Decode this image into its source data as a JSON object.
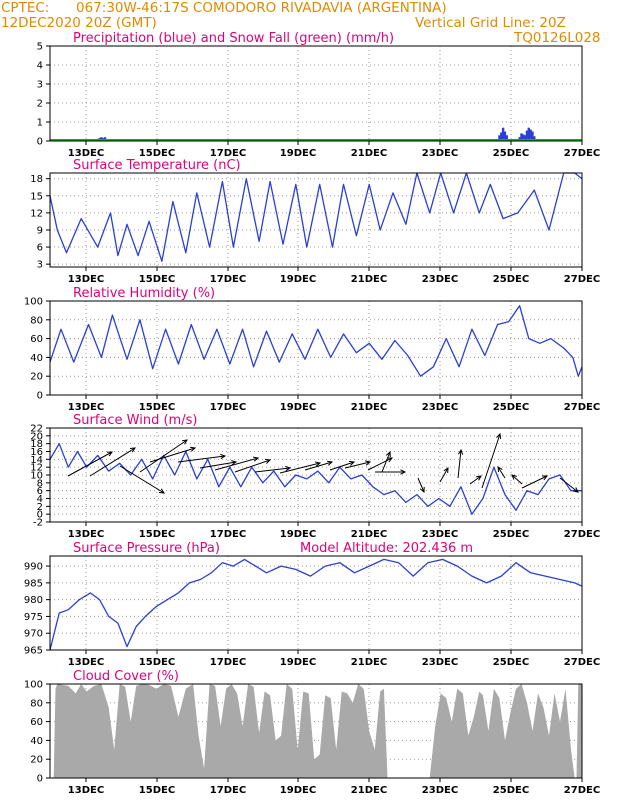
{
  "header": {
    "source": "CPTEC:",
    "location": "067:30W-46:17S   COMODORO RIVADAVIA (ARGENTINA)",
    "datetime": "12DEC2020 20Z (GMT)",
    "gridline": "Vertical Grid Line: 20Z",
    "code": "TQ0126L028"
  },
  "colors": {
    "header": "#e08a00",
    "title": "#e0007a",
    "line": "#2b3fd6",
    "snow": "#00bb00",
    "cloud": "#a9a9a9",
    "arrow": "#000000"
  },
  "chart_data": [
    {
      "type": "bar",
      "title": "Precipitation (blue) and Snow Fall (green) (mm/h)",
      "x_ticks": [
        "13DEC",
        "15DEC",
        "17DEC",
        "19DEC",
        "21DEC",
        "23DEC",
        "25DEC",
        "27DEC"
      ],
      "y_ticks": [
        0,
        1,
        2,
        3,
        4,
        5
      ],
      "ylim": [
        0,
        5
      ],
      "day_range": [
        12.5,
        27
      ],
      "series": [
        {
          "name": "Precipitation",
          "x": [
            13.8,
            13.85,
            13.9,
            13.95,
            14.0,
            14.05,
            24.75,
            24.8,
            24.85,
            24.9,
            24.95,
            25.0,
            25.3,
            25.35,
            25.4,
            25.45,
            25.5,
            25.55,
            25.6,
            25.65,
            25.7,
            25.75
          ],
          "values": [
            0.1,
            0.15,
            0.2,
            0.15,
            0.2,
            0.1,
            0.3,
            0.45,
            0.7,
            0.5,
            0.3,
            0.1,
            0.2,
            0.4,
            0.35,
            0.3,
            0.55,
            0.7,
            0.6,
            0.5,
            0.25,
            0.1
          ]
        },
        {
          "name": "Snow Fall",
          "x": [
            12.5,
            27
          ],
          "values": [
            0,
            0
          ]
        }
      ]
    },
    {
      "type": "line",
      "title": "Surface Temperature (nC)",
      "x_ticks": [
        "13DEC",
        "15DEC",
        "17DEC",
        "19DEC",
        "21DEC",
        "23DEC",
        "25DEC",
        "27DEC"
      ],
      "y_ticks": [
        3,
        6,
        9,
        12,
        15,
        18
      ],
      "ylim": [
        2.5,
        19
      ],
      "day_range": [
        12.5,
        27
      ],
      "series": [
        {
          "name": "Temperature",
          "x": [
            12.5,
            12.7,
            12.95,
            13.35,
            13.8,
            14.15,
            14.35,
            14.6,
            14.9,
            15.2,
            15.55,
            15.85,
            16.2,
            16.5,
            16.85,
            17.2,
            17.5,
            17.85,
            18.2,
            18.5,
            18.85,
            19.2,
            19.5,
            19.85,
            20.2,
            20.5,
            20.85,
            21.2,
            21.5,
            21.85,
            22.2,
            22.5,
            22.85,
            23.15,
            23.5,
            23.85,
            24.2,
            24.5,
            24.85,
            25.25,
            25.7,
            26.1,
            26.5,
            26.8,
            27
          ],
          "values": [
            15,
            9,
            5,
            11,
            6,
            12,
            4.5,
            10,
            4.5,
            10.5,
            3.5,
            14,
            5,
            15.5,
            6,
            17.5,
            6,
            18,
            7,
            17.5,
            6.5,
            17,
            6,
            17,
            6,
            17,
            8,
            17,
            9,
            15.5,
            10,
            19,
            12,
            19,
            12,
            19,
            12,
            17,
            11,
            12,
            16,
            9,
            19,
            19,
            18
          ]
        }
      ]
    },
    {
      "type": "line",
      "title": "Relative Humidity (%)",
      "x_ticks": [
        "13DEC",
        "15DEC",
        "17DEC",
        "19DEC",
        "21DEC",
        "23DEC",
        "25DEC",
        "27DEC"
      ],
      "y_ticks": [
        0,
        20,
        40,
        60,
        80,
        100
      ],
      "ylim": [
        0,
        100
      ],
      "day_range": [
        12.5,
        27
      ],
      "series": [
        {
          "name": "Humidity",
          "x": [
            12.5,
            12.8,
            13.15,
            13.55,
            13.9,
            14.2,
            14.6,
            14.95,
            15.3,
            15.65,
            16.0,
            16.35,
            16.7,
            17.05,
            17.4,
            17.75,
            18.05,
            18.4,
            18.75,
            19.1,
            19.45,
            19.8,
            20.15,
            20.5,
            20.85,
            21.2,
            21.55,
            21.9,
            22.25,
            22.6,
            22.95,
            23.3,
            23.65,
            24.0,
            24.35,
            24.7,
            25.0,
            25.3,
            25.55,
            25.85,
            26.15,
            26.5,
            26.75,
            26.9,
            27
          ],
          "values": [
            35,
            70,
            35,
            75,
            40,
            85,
            38,
            80,
            28,
            70,
            33,
            75,
            38,
            70,
            33,
            70,
            30,
            68,
            35,
            65,
            38,
            70,
            40,
            65,
            45,
            55,
            38,
            58,
            42,
            20,
            30,
            60,
            30,
            70,
            42,
            75,
            78,
            95,
            60,
            55,
            60,
            50,
            40,
            20,
            30
          ]
        }
      ]
    },
    {
      "type": "line",
      "title": "Surface Wind (m/s)",
      "x_ticks": [
        "13DEC",
        "15DEC",
        "17DEC",
        "19DEC",
        "21DEC",
        "23DEC",
        "25DEC",
        "27DEC"
      ],
      "y_ticks": [
        -2,
        0,
        2,
        4,
        6,
        8,
        10,
        12,
        14,
        16,
        18,
        20,
        22
      ],
      "ylim": [
        -2,
        22
      ],
      "day_range": [
        12.5,
        27
      ],
      "series": [
        {
          "name": "Wind speed",
          "x": [
            12.5,
            12.75,
            13.0,
            13.25,
            13.5,
            13.8,
            14.1,
            14.4,
            14.7,
            15.0,
            15.3,
            15.6,
            15.9,
            16.2,
            16.5,
            16.8,
            17.1,
            17.4,
            17.7,
            18.0,
            18.3,
            18.6,
            18.9,
            19.2,
            19.5,
            19.8,
            20.1,
            20.4,
            20.7,
            21.0,
            21.3,
            21.6,
            21.9,
            22.2,
            22.5,
            22.8,
            23.1,
            23.4,
            23.7,
            24.0,
            24.3,
            24.6,
            24.9,
            25.2,
            25.5,
            25.8,
            26.1,
            26.4,
            26.7,
            27
          ],
          "values": [
            14,
            18,
            12,
            16,
            12,
            15,
            11,
            13,
            10,
            14,
            9,
            15,
            10,
            16,
            9,
            14,
            7,
            12,
            7,
            12,
            8,
            11,
            7,
            10,
            9,
            11,
            8,
            12,
            9,
            10,
            7,
            5,
            6,
            3,
            5,
            2,
            4,
            2,
            7,
            0,
            4,
            12,
            5,
            1,
            6,
            5,
            9,
            10,
            6,
            6
          ]
        }
      ]
    },
    {
      "type": "line",
      "title": "Surface Pressure (hPa)",
      "annotation": "Model Altitude: 202.436 m",
      "x_ticks": [
        "13DEC",
        "15DEC",
        "17DEC",
        "19DEC",
        "21DEC",
        "23DEC",
        "25DEC",
        "27DEC"
      ],
      "y_ticks": [
        965,
        970,
        975,
        980,
        985,
        990
      ],
      "ylim": [
        965,
        993
      ],
      "day_range": [
        12.5,
        27
      ],
      "series": [
        {
          "name": "Pressure",
          "x": [
            12.5,
            12.75,
            13.0,
            13.3,
            13.6,
            13.85,
            14.1,
            14.35,
            14.6,
            14.85,
            15.1,
            15.4,
            15.7,
            16.0,
            16.3,
            16.6,
            16.9,
            17.2,
            17.5,
            17.8,
            18.1,
            18.4,
            18.8,
            19.2,
            19.6,
            20.0,
            20.4,
            20.8,
            21.2,
            21.6,
            22.0,
            22.4,
            22.8,
            23.2,
            23.6,
            24.0,
            24.4,
            24.8,
            25.2,
            25.6,
            26.0,
            26.4,
            26.8,
            27
          ],
          "values": [
            965,
            976,
            977,
            980,
            982,
            980,
            975,
            973,
            966,
            972,
            975,
            978,
            980,
            982,
            985,
            986,
            988,
            991,
            990,
            992,
            990,
            988,
            990,
            989,
            987,
            990,
            991,
            988,
            990,
            992,
            991,
            987,
            991,
            992,
            990,
            987,
            985,
            987,
            991,
            988,
            987,
            986,
            985,
            984
          ]
        }
      ]
    },
    {
      "type": "area",
      "title": "Cloud Cover (%)",
      "x_ticks": [
        "13DEC",
        "15DEC",
        "17DEC",
        "19DEC",
        "21DEC",
        "23DEC",
        "25DEC",
        "27DEC"
      ],
      "y_ticks": [
        0,
        20,
        40,
        60,
        80,
        100
      ],
      "ylim": [
        0,
        100
      ],
      "day_range": [
        12.5,
        27
      ],
      "series": [
        {
          "name": "Cloud Cover",
          "x": [
            12.5,
            12.6,
            12.65,
            12.7,
            13.0,
            13.2,
            13.35,
            13.5,
            13.7,
            13.9,
            14.1,
            14.25,
            14.4,
            14.55,
            14.7,
            14.85,
            15.0,
            15.2,
            15.4,
            15.6,
            15.8,
            16.0,
            16.2,
            16.4,
            16.55,
            16.7,
            16.85,
            17.0,
            17.15,
            17.3,
            17.45,
            17.6,
            17.75,
            17.9,
            18.05,
            18.2,
            18.35,
            18.5,
            18.65,
            18.8,
            18.95,
            19.1,
            19.25,
            19.4,
            19.55,
            19.7,
            19.85,
            20.0,
            20.15,
            20.3,
            20.45,
            20.6,
            20.75,
            20.9,
            21.05,
            21.2,
            21.35,
            21.5,
            21.6,
            21.7,
            22.0,
            22.3,
            22.6,
            22.85,
            23.0,
            23.15,
            23.3,
            23.45,
            23.6,
            23.75,
            23.9,
            24.05,
            24.2,
            24.3,
            24.45,
            24.6,
            24.75,
            24.9,
            25.05,
            25.2,
            25.35,
            25.5,
            25.65,
            25.8,
            25.95,
            26.1,
            26.25,
            26.4,
            26.55,
            26.7,
            26.8,
            26.85,
            26.9,
            27
          ],
          "values": [
            0,
            0,
            95,
            100,
            98,
            90,
            100,
            92,
            98,
            100,
            75,
            30,
            100,
            97,
            60,
            98,
            100,
            99,
            95,
            100,
            98,
            65,
            95,
            100,
            45,
            10,
            100,
            98,
            55,
            95,
            100,
            90,
            55,
            100,
            97,
            48,
            92,
            88,
            40,
            45,
            100,
            95,
            30,
            92,
            90,
            20,
            25,
            88,
            85,
            30,
            92,
            90,
            80,
            100,
            95,
            50,
            30,
            92,
            95,
            0,
            0,
            0,
            0,
            0,
            55,
            90,
            85,
            60,
            95,
            90,
            45,
            65,
            92,
            88,
            50,
            95,
            85,
            40,
            70,
            95,
            100,
            80,
            50,
            90,
            75,
            45,
            90,
            60,
            95,
            30,
            0,
            0,
            100,
            100
          ]
        }
      ]
    }
  ]
}
